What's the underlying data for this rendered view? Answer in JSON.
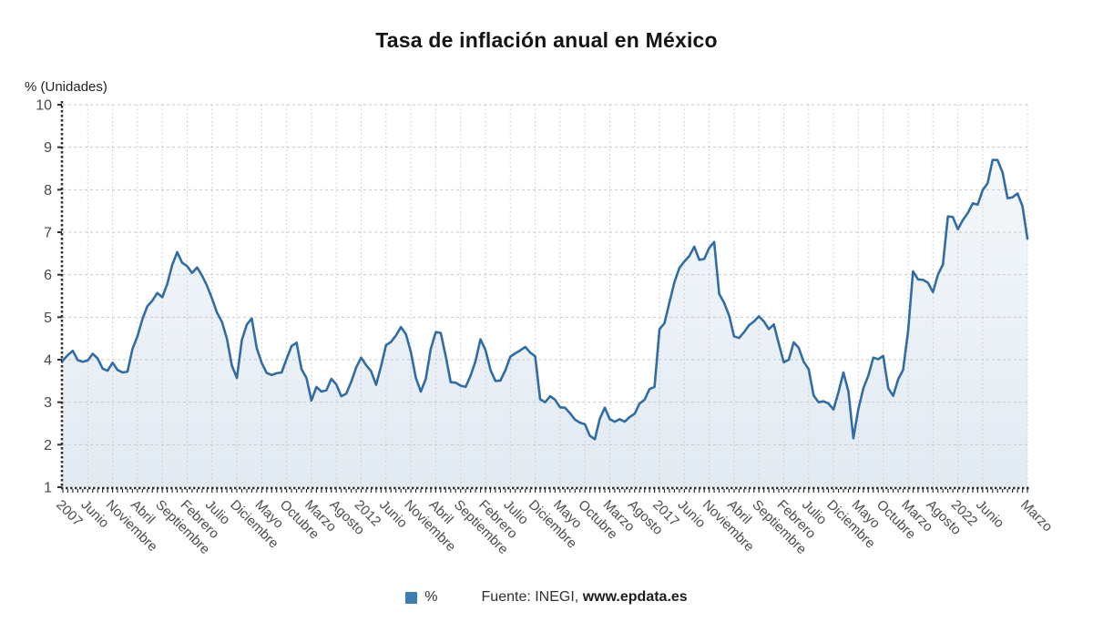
{
  "title": "Tasa de inflación anual en México",
  "y_axis_title": "% (Unidades)",
  "legend": {
    "label": "%",
    "color": "#3d7eb2"
  },
  "source": {
    "prefix": "Fuente: INEGI, ",
    "site": "www.epdata.es"
  },
  "colors": {
    "line": "#2f6da4",
    "area_top": "rgba(47,109,164,0.05)",
    "area_bottom": "rgba(47,109,164,0.14)",
    "grid": "#c7c7cd",
    "axis": "#2d2d2d",
    "tick_label": "#46484c"
  },
  "chart_data": {
    "type": "area",
    "title": "Tasa de inflación anual en México",
    "xlabel": "",
    "ylabel": "% (Unidades)",
    "ylim": [
      1,
      10
    ],
    "y_ticks": [
      1,
      2,
      3,
      4,
      5,
      6,
      7,
      8,
      9,
      10
    ],
    "grid": true,
    "legend_position": "bottom",
    "x_start_label": "2007",
    "x_end_label": "Marzo",
    "x_tick_labels": [
      {
        "index": 0,
        "label": "2007"
      },
      {
        "index": 5,
        "label": "Junio"
      },
      {
        "index": 10,
        "label": "Noviembre"
      },
      {
        "index": 15,
        "label": "Abril"
      },
      {
        "index": 20,
        "label": "Septiembre"
      },
      {
        "index": 25,
        "label": "Febrero"
      },
      {
        "index": 30,
        "label": "Julio"
      },
      {
        "index": 35,
        "label": "Diciembre"
      },
      {
        "index": 40,
        "label": "Mayo"
      },
      {
        "index": 45,
        "label": "Octubre"
      },
      {
        "index": 50,
        "label": "Marzo"
      },
      {
        "index": 55,
        "label": "Agosto"
      },
      {
        "index": 60,
        "label": "2012"
      },
      {
        "index": 65,
        "label": "Junio"
      },
      {
        "index": 70,
        "label": "Noviembre"
      },
      {
        "index": 75,
        "label": "Abril"
      },
      {
        "index": 80,
        "label": "Septiembre"
      },
      {
        "index": 85,
        "label": "Febrero"
      },
      {
        "index": 90,
        "label": "Julio"
      },
      {
        "index": 95,
        "label": "Diciembre"
      },
      {
        "index": 100,
        "label": "Mayo"
      },
      {
        "index": 105,
        "label": "Octubre"
      },
      {
        "index": 110,
        "label": "Marzo"
      },
      {
        "index": 115,
        "label": "Agosto"
      },
      {
        "index": 120,
        "label": "2017"
      },
      {
        "index": 125,
        "label": "Junio"
      },
      {
        "index": 130,
        "label": "Noviembre"
      },
      {
        "index": 135,
        "label": "Abril"
      },
      {
        "index": 140,
        "label": "Septiembre"
      },
      {
        "index": 145,
        "label": "Febrero"
      },
      {
        "index": 150,
        "label": "Julio"
      },
      {
        "index": 155,
        "label": "Diciembre"
      },
      {
        "index": 160,
        "label": "Mayo"
      },
      {
        "index": 165,
        "label": "Octubre"
      },
      {
        "index": 170,
        "label": "Marzo"
      },
      {
        "index": 175,
        "label": "Agosto"
      },
      {
        "index": 180,
        "label": "2022"
      },
      {
        "index": 185,
        "label": "Junio"
      },
      {
        "index": 194,
        "label": "Marzo"
      }
    ],
    "series": [
      {
        "name": "%",
        "values": [
          3.98,
          4.11,
          4.21,
          3.99,
          3.95,
          3.98,
          4.14,
          4.03,
          3.79,
          3.74,
          3.93,
          3.76,
          3.7,
          3.72,
          4.25,
          4.55,
          4.95,
          5.26,
          5.39,
          5.57,
          5.47,
          5.78,
          6.23,
          6.53,
          6.28,
          6.2,
          6.04,
          6.17,
          5.98,
          5.74,
          5.44,
          5.11,
          4.89,
          4.5,
          3.86,
          3.57,
          4.46,
          4.83,
          4.97,
          4.27,
          3.92,
          3.69,
          3.64,
          3.68,
          3.7,
          4.02,
          4.32,
          4.4,
          3.78,
          3.57,
          3.04,
          3.36,
          3.25,
          3.28,
          3.55,
          3.42,
          3.14,
          3.2,
          3.48,
          3.82,
          4.05,
          3.87,
          3.73,
          3.41,
          3.85,
          4.34,
          4.42,
          4.57,
          4.77,
          4.6,
          4.18,
          3.57,
          3.25,
          3.55,
          4.25,
          4.65,
          4.63,
          4.09,
          3.47,
          3.46,
          3.39,
          3.36,
          3.62,
          3.97,
          4.48,
          4.23,
          3.76,
          3.5,
          3.51,
          3.75,
          4.07,
          4.15,
          4.22,
          4.3,
          4.17,
          4.08,
          3.07,
          3.0,
          3.14,
          3.06,
          2.88,
          2.87,
          2.74,
          2.59,
          2.52,
          2.48,
          2.21,
          2.13,
          2.61,
          2.87,
          2.6,
          2.54,
          2.6,
          2.54,
          2.65,
          2.73,
          2.97,
          3.06,
          3.31,
          3.36,
          4.72,
          4.86,
          5.35,
          5.82,
          6.16,
          6.31,
          6.44,
          6.66,
          6.35,
          6.37,
          6.63,
          6.77,
          5.55,
          5.34,
          5.04,
          4.55,
          4.51,
          4.65,
          4.81,
          4.9,
          5.02,
          4.9,
          4.72,
          4.83,
          4.37,
          3.94,
          4.0,
          4.41,
          4.28,
          3.95,
          3.78,
          3.16,
          3.0,
          3.02,
          2.97,
          2.83,
          3.24,
          3.7,
          3.25,
          2.15,
          2.84,
          3.33,
          3.62,
          4.05,
          4.01,
          4.09,
          3.33,
          3.15,
          3.54,
          3.76,
          4.67,
          6.08,
          5.89,
          5.88,
          5.81,
          5.59,
          6.0,
          6.24,
          7.37,
          7.36,
          7.07,
          7.28,
          7.45,
          7.68,
          7.65,
          7.99,
          8.15,
          8.7,
          8.7,
          8.41,
          7.8,
          7.82,
          7.91,
          7.62,
          6.85
        ]
      }
    ]
  }
}
